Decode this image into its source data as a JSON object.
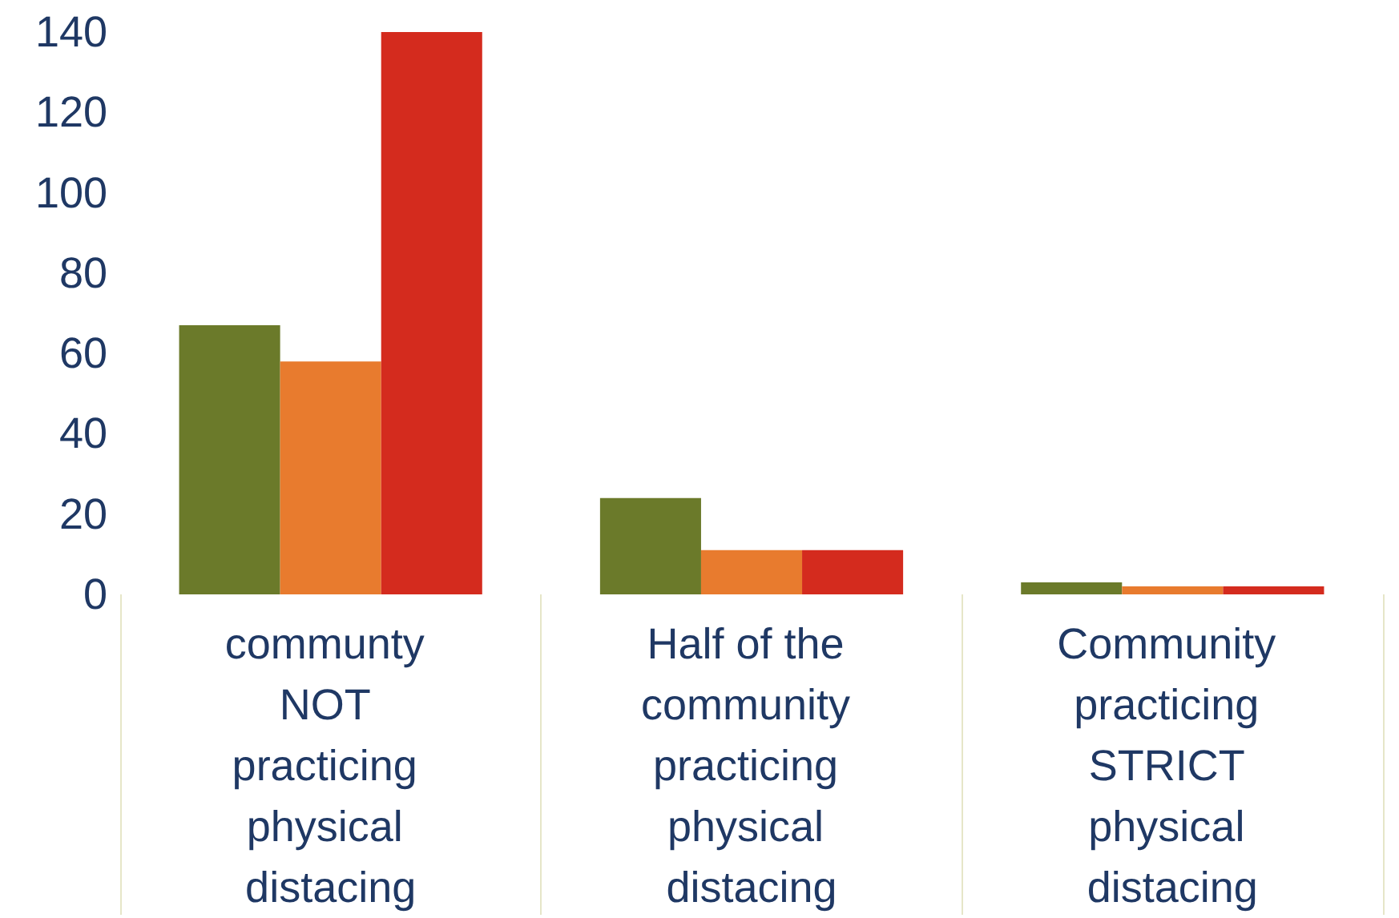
{
  "chart_data": {
    "type": "bar",
    "categories": [
      "communty NOT practicing physical distacing",
      "Half of the community practicing physical distacing",
      "Community practicing STRICT physical distacing"
    ],
    "series": [
      {
        "color": "#6b7a2a",
        "values": [
          67,
          24,
          3
        ]
      },
      {
        "color": "#e87b2e",
        "values": [
          58,
          11,
          2
        ]
      },
      {
        "color": "#d42b1e",
        "values": [
          140,
          11,
          2
        ]
      }
    ],
    "ylim": [
      0,
      140
    ],
    "yticks": [
      0,
      20,
      40,
      60,
      80,
      100,
      120,
      140
    ],
    "grid": false
  }
}
